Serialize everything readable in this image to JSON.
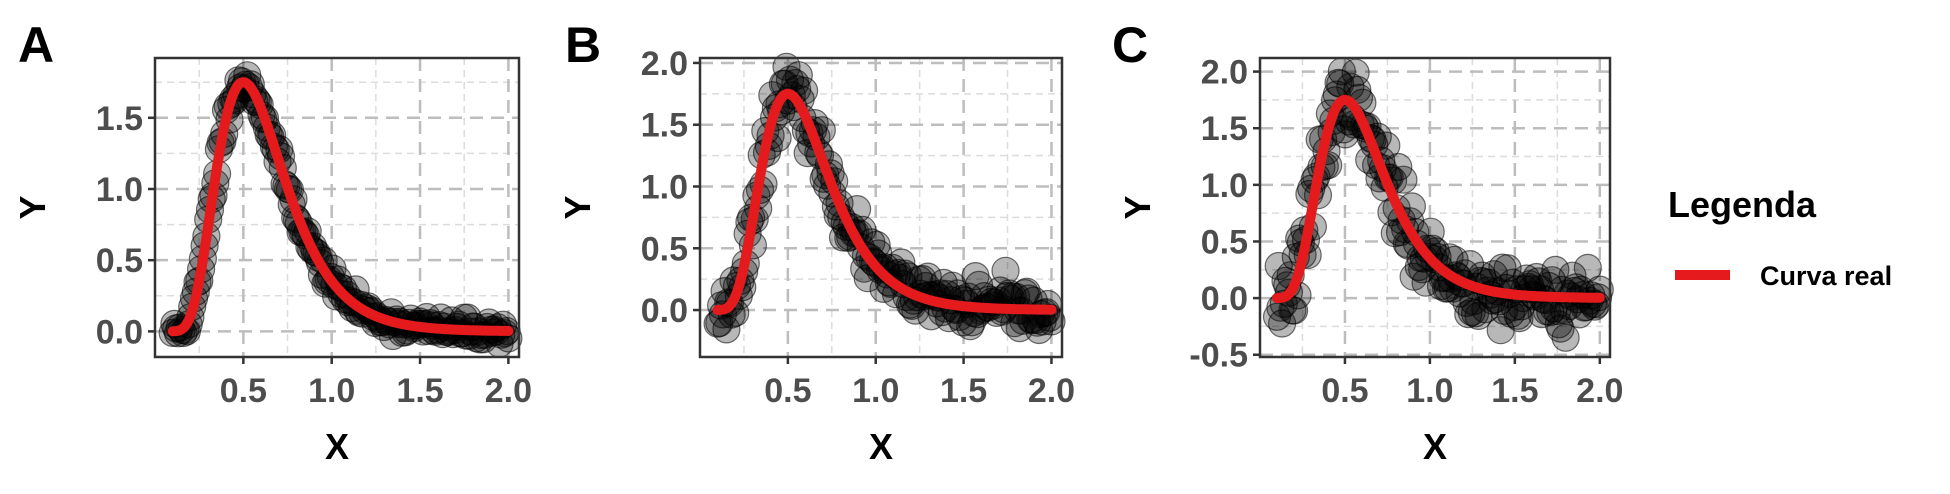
{
  "chart_data": [
    {
      "panel": "A",
      "type": "scatter",
      "xlabel": "X",
      "ylabel": "Y",
      "xlim": [
        0.0,
        2.06
      ],
      "ylim": [
        -0.18,
        1.92
      ],
      "xticks": [
        0.5,
        1.0,
        1.5,
        2.0
      ],
      "xtick_labels": [
        "0.5",
        "1.0",
        "1.5",
        "2.0"
      ],
      "yticks": [
        0.0,
        0.5,
        1.0,
        1.5
      ],
      "ytick_labels": [
        "0.0",
        "0.5",
        "1.0",
        "1.5"
      ],
      "noise": 0.04,
      "grid": true,
      "series": [
        {
          "name": "Curva real",
          "kind": "line",
          "color": "#e41a1c",
          "curve": "y = 1.75 * exp(-ln(x/0.5)^2 / 0.3)",
          "x_range": [
            0.1,
            2.0
          ]
        },
        {
          "kind": "points",
          "color": "#000000",
          "note": "noisy observations around the true curve"
        }
      ]
    },
    {
      "panel": "B",
      "type": "scatter",
      "xlabel": "X",
      "ylabel": "Y",
      "xlim": [
        0.0,
        2.06
      ],
      "ylim": [
        -0.38,
        2.04
      ],
      "xticks": [
        0.5,
        1.0,
        1.5,
        2.0
      ],
      "xtick_labels": [
        "0.5",
        "1.0",
        "1.5",
        "2.0"
      ],
      "yticks": [
        0.0,
        0.5,
        1.0,
        1.5,
        2.0
      ],
      "ytick_labels": [
        "0.0",
        "0.5",
        "1.0",
        "1.5",
        "2.0"
      ],
      "noise": 0.1,
      "grid": true,
      "series": [
        {
          "name": "Curva real",
          "kind": "line",
          "color": "#e41a1c",
          "curve": "y = 1.75 * exp(-ln(x/0.5)^2 / 0.3)",
          "x_range": [
            0.1,
            2.0
          ]
        },
        {
          "kind": "points",
          "color": "#000000",
          "note": "noisy observations around the true curve"
        }
      ]
    },
    {
      "panel": "C",
      "type": "scatter",
      "xlabel": "X",
      "ylabel": "Y",
      "xlim": [
        0.0,
        2.06
      ],
      "ylim": [
        -0.52,
        2.12
      ],
      "xticks": [
        0.5,
        1.0,
        1.5,
        2.0
      ],
      "xtick_labels": [
        "0.5",
        "1.0",
        "1.5",
        "2.0"
      ],
      "yticks": [
        -0.5,
        0.0,
        0.5,
        1.0,
        1.5,
        2.0
      ],
      "ytick_labels": [
        "-0.5",
        "0.0",
        "0.5",
        "1.0",
        "1.5",
        "2.0"
      ],
      "noise": 0.15,
      "grid": true,
      "series": [
        {
          "name": "Curva real",
          "kind": "line",
          "color": "#e41a1c",
          "curve": "y = 1.75 * exp(-ln(x/0.5)^2 / 0.3)",
          "x_range": [
            0.1,
            2.0
          ]
        },
        {
          "kind": "points",
          "color": "#000000",
          "note": "noisy observations around the true curve"
        }
      ]
    }
  ],
  "legend": {
    "title": "Legenda",
    "entries": [
      {
        "label": "Curva real",
        "color": "#e41a1c"
      }
    ],
    "position": "right"
  }
}
